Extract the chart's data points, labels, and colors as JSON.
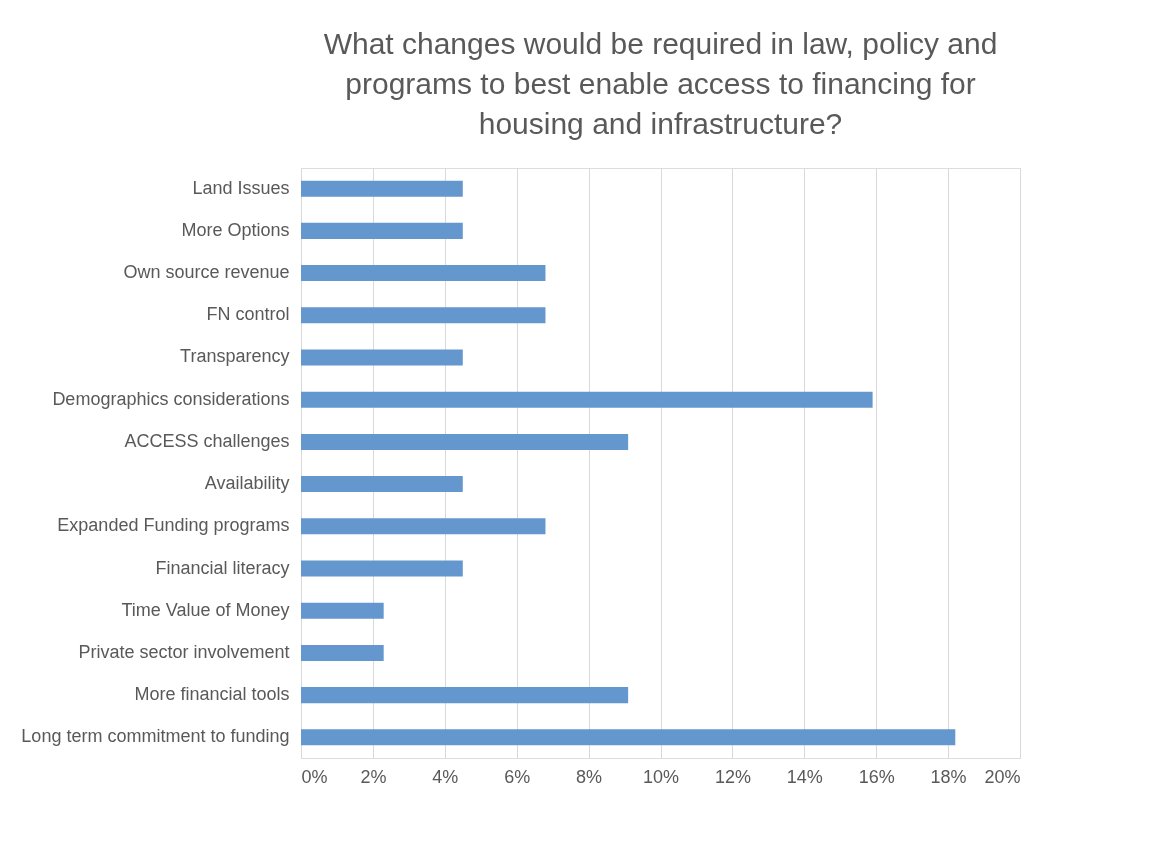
{
  "chart_data": {
    "type": "bar",
    "orientation": "horizontal",
    "title": "What changes would be required in law, policy and programs to best enable access to financing for housing and infrastructure?",
    "categories": [
      "Land Issues",
      "More Options",
      "Own source revenue",
      "FN control",
      "Transparency",
      "Demographics considerations",
      "ACCESS challenges",
      "Availability",
      "Expanded Funding programs",
      "Financial literacy",
      "Time Value of Money",
      "Private sector involvement",
      "More financial tools",
      "Long term commitment to funding"
    ],
    "values": [
      4.5,
      4.5,
      6.8,
      6.8,
      4.5,
      15.9,
      9.1,
      4.5,
      6.8,
      4.5,
      2.3,
      2.3,
      9.1,
      18.2
    ],
    "color": "#6497cd",
    "xlim": [
      0,
      20
    ],
    "xticks": [
      {
        "value": 0,
        "label": "0%"
      },
      {
        "value": 2,
        "label": "2%"
      },
      {
        "value": 4,
        "label": "4%"
      },
      {
        "value": 6,
        "label": "6%"
      },
      {
        "value": 8,
        "label": "8%"
      },
      {
        "value": 10,
        "label": "10%"
      },
      {
        "value": 12,
        "label": "12%"
      },
      {
        "value": 14,
        "label": "14%"
      },
      {
        "value": 16,
        "label": "16%"
      },
      {
        "value": 18,
        "label": "18%"
      },
      {
        "value": 20,
        "label": "20%"
      }
    ],
    "grid": "x"
  }
}
